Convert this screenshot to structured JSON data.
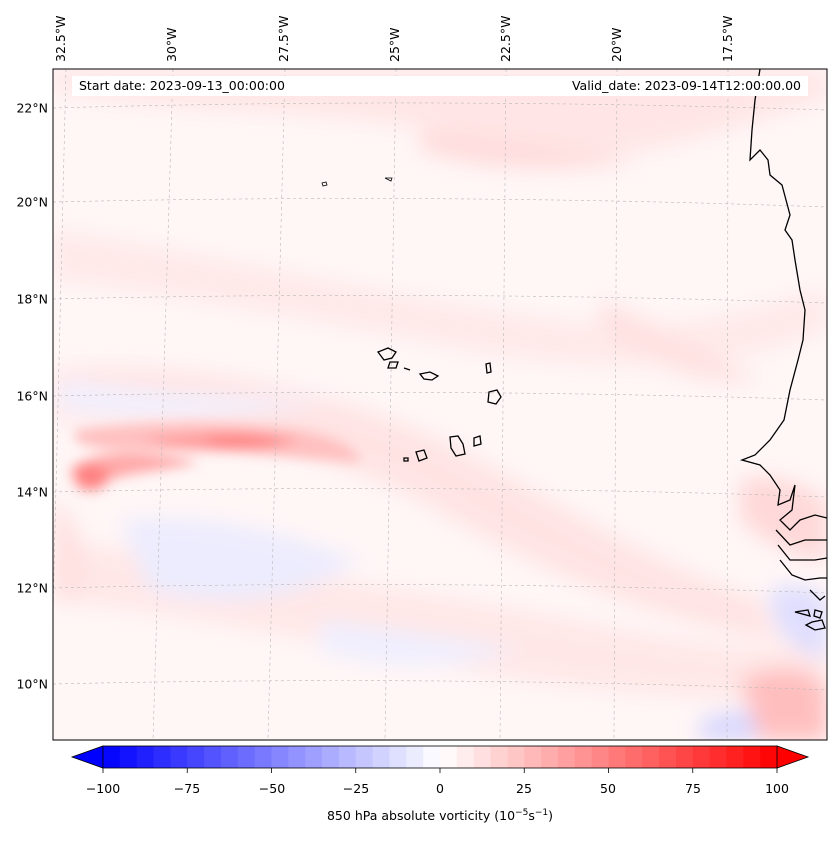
{
  "map": {
    "start_date": "Start date: 2023-09-13_00:00:00",
    "valid_date": "Valid_date: 2023-09-14T12:00:00.00",
    "longitude_labels": [
      "32.5°W",
      "30°W",
      "27.5°W",
      "25°W",
      "22.5°W",
      "20°W",
      "17.5°W"
    ],
    "latitude_labels": [
      "22°N",
      "20°N",
      "18°N",
      "16°N",
      "14°N",
      "12°N",
      "10°N"
    ],
    "field": "850 hPa absolute vorticity"
  },
  "colorbar": {
    "ticks": [
      "−100",
      "−75",
      "−50",
      "−25",
      "0",
      "25",
      "50",
      "75",
      "100"
    ],
    "label_prefix": "850 hPa absolute vorticity (10",
    "label_exp1": "−5",
    "label_mid": "s",
    "label_exp2": "−1",
    "label_suffix": ")",
    "min_color": "#0000ff",
    "zero_color": "#ffffff",
    "max_color": "#ff0000"
  }
}
